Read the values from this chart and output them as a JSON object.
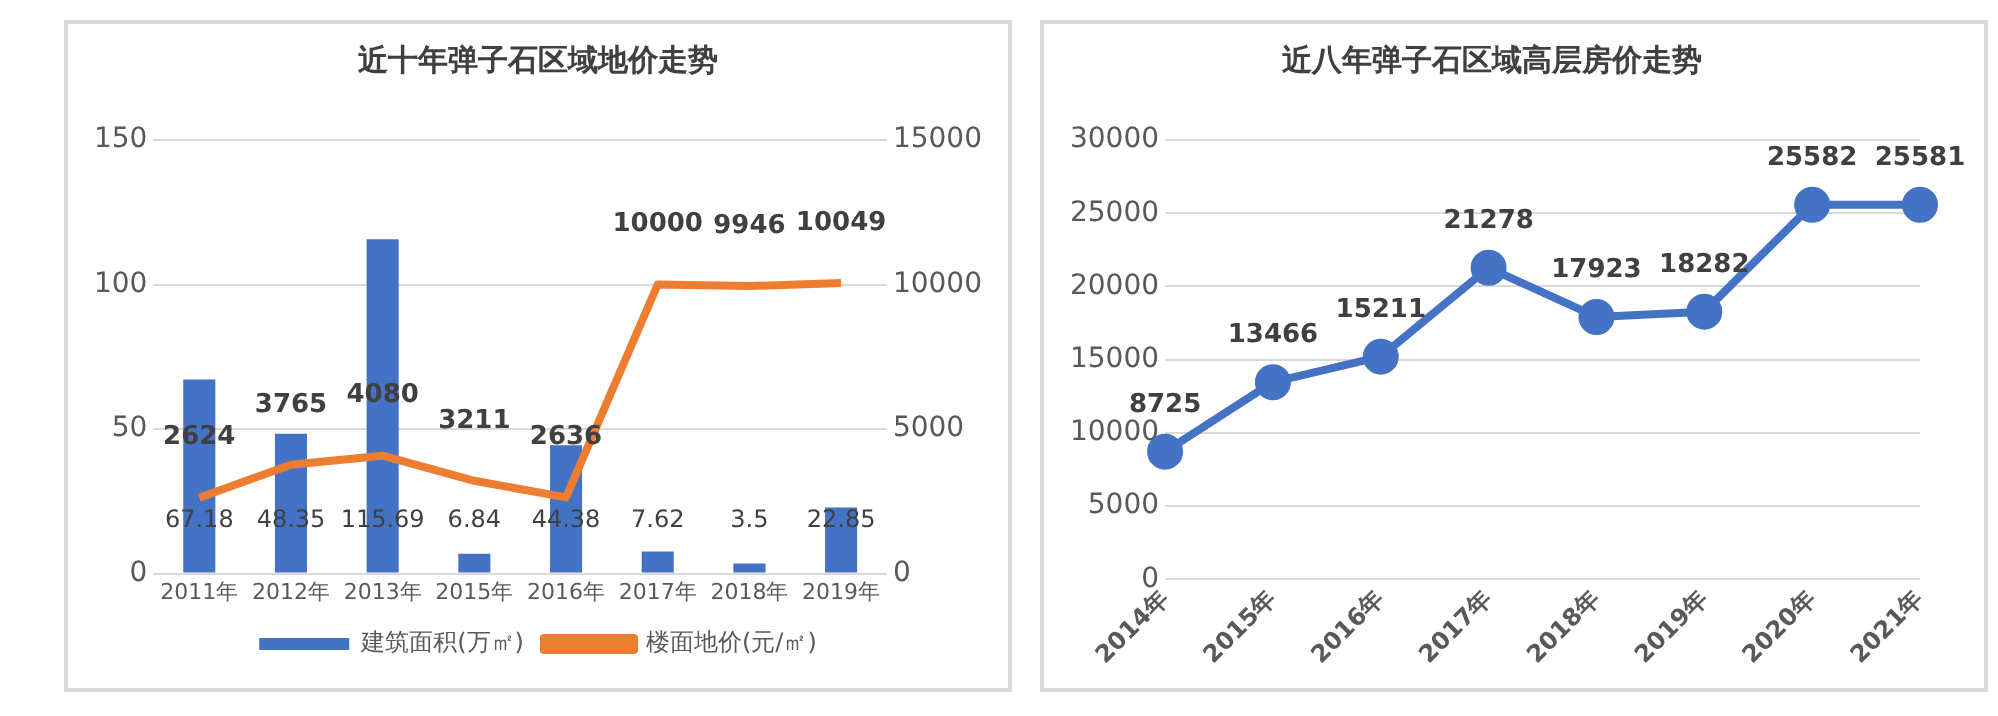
{
  "chart_data": [
    {
      "type": "bar",
      "title": "近十年弹子石区域地价走势",
      "categories": [
        "2011年",
        "2012年",
        "2013年",
        "2015年",
        "2016年",
        "2017年",
        "2018年",
        "2019年"
      ],
      "series": [
        {
          "name": "建筑面积(万㎡)",
          "type": "bar",
          "color": "#4472c4",
          "values": [
            67.18,
            48.35,
            115.69,
            6.84,
            44.38,
            7.62,
            3.5,
            22.85
          ]
        },
        {
          "name": "楼面地价(元/㎡)",
          "type": "line",
          "axis": "y2",
          "color": "#ed7d31",
          "values": [
            2624,
            3765,
            4080,
            3211,
            2636,
            10000,
            9946,
            10049
          ]
        }
      ],
      "ylim": [
        0,
        150
      ],
      "yticks": [
        0,
        50,
        100,
        150
      ],
      "y2lim": [
        0,
        15000
      ],
      "y2ticks": [
        0,
        5000,
        10000,
        15000
      ],
      "grid": "y",
      "legend": "bottom",
      "data_labels": true,
      "marker": "none"
    },
    {
      "type": "line",
      "title": "近八年弹子石区域高层房价走势",
      "categories": [
        "2014年",
        "2015年",
        "2016年",
        "2017年",
        "2018年",
        "2019年",
        "2020年",
        "2021年"
      ],
      "series": [
        {
          "color": "#4472c4",
          "values": [
            8725,
            13466,
            15211,
            21278,
            17923,
            18282,
            25582,
            25581
          ]
        }
      ],
      "ylim": [
        0,
        30000
      ],
      "yticks": [
        0,
        5000,
        10000,
        15000,
        20000,
        25000,
        30000
      ],
      "grid": "y",
      "legend": false,
      "data_labels": true,
      "marker": "circle"
    }
  ]
}
